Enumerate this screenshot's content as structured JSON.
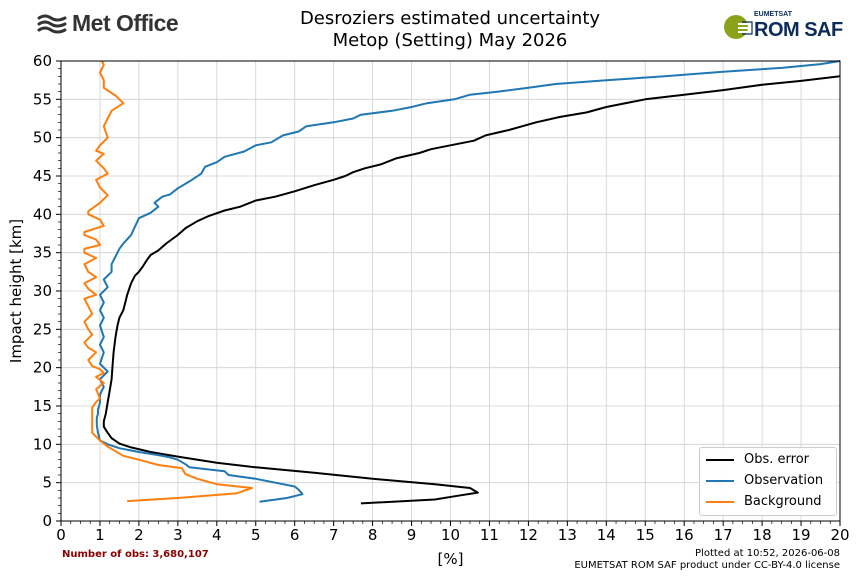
{
  "header": {
    "title_line1": "Desroziers estimated uncertainty",
    "title_line2": "Metop (Setting) May 2026",
    "left_logo_text": "Met Office",
    "right_logo_small": "EUMETSAT",
    "right_logo_big": "ROM SAF"
  },
  "footer": {
    "nobs": "Number of obs: 3,680,107",
    "plotted": "Plotted at 10:52, 2026-06-08",
    "license": "EUMETSAT ROM SAF product under CC-BY-4.0 license"
  },
  "colors": {
    "obs_error": "#000000",
    "observation": "#1f77b4",
    "background": "#ff7f0e",
    "metoffice_text": "#333333",
    "romsaf_text": "#0c2c5c",
    "romsaf_green": "#8aa21a",
    "nobs_text": "#8b0000"
  },
  "chart_data": {
    "type": "line",
    "xlabel": "[%]",
    "ylabel": "Impact height [km]",
    "xlim": [
      0,
      20
    ],
    "ylim": [
      0,
      60
    ],
    "xticks": [
      "0",
      "1",
      "2",
      "3",
      "4",
      "5",
      "6",
      "7",
      "8",
      "9",
      "10",
      "11",
      "12",
      "13",
      "14",
      "15",
      "16",
      "17",
      "18",
      "19",
      "20"
    ],
    "yticks": [
      "0",
      "5",
      "10",
      "15",
      "20",
      "25",
      "30",
      "35",
      "40",
      "45",
      "50",
      "55",
      "60"
    ],
    "grid": true,
    "legend_position": "lower-right",
    "series": [
      {
        "name": "Obs. error",
        "color": "#000000",
        "points": [
          [
            7.7,
            2.3
          ],
          [
            9.6,
            2.8
          ],
          [
            10.2,
            3.3
          ],
          [
            10.7,
            3.7
          ],
          [
            10.5,
            4.3
          ],
          [
            9.6,
            4.8
          ],
          [
            8.0,
            5.5
          ],
          [
            6.5,
            6.3
          ],
          [
            5.0,
            7.0
          ],
          [
            4.0,
            7.6
          ],
          [
            3.0,
            8.4
          ],
          [
            2.3,
            9.0
          ],
          [
            1.8,
            9.6
          ],
          [
            1.5,
            10.1
          ],
          [
            1.3,
            10.8
          ],
          [
            1.2,
            11.5
          ],
          [
            1.1,
            12.3
          ],
          [
            1.1,
            13.0
          ],
          [
            1.15,
            14.0
          ],
          [
            1.2,
            15.5
          ],
          [
            1.25,
            17.0
          ],
          [
            1.3,
            18.5
          ],
          [
            1.32,
            20.0
          ],
          [
            1.35,
            22.0
          ],
          [
            1.4,
            24.0
          ],
          [
            1.45,
            25.5
          ],
          [
            1.5,
            26.5
          ],
          [
            1.6,
            27.5
          ],
          [
            1.65,
            28.5
          ],
          [
            1.7,
            29.5
          ],
          [
            1.8,
            31.0
          ],
          [
            1.9,
            32.0
          ],
          [
            2.0,
            32.5
          ],
          [
            2.1,
            33.2
          ],
          [
            2.2,
            34.0
          ],
          [
            2.3,
            34.7
          ],
          [
            2.5,
            35.3
          ],
          [
            2.7,
            36.2
          ],
          [
            3.0,
            37.3
          ],
          [
            3.2,
            38.2
          ],
          [
            3.5,
            39.1
          ],
          [
            3.8,
            39.8
          ],
          [
            4.2,
            40.5
          ],
          [
            4.6,
            41.0
          ],
          [
            5.0,
            41.8
          ],
          [
            5.5,
            42.3
          ],
          [
            6.0,
            43.0
          ],
          [
            6.5,
            43.8
          ],
          [
            7.0,
            44.5
          ],
          [
            7.3,
            45.0
          ],
          [
            7.5,
            45.5
          ],
          [
            7.8,
            46.0
          ],
          [
            8.2,
            46.5
          ],
          [
            8.6,
            47.3
          ],
          [
            9.2,
            48.0
          ],
          [
            9.5,
            48.5
          ],
          [
            10.0,
            49.0
          ],
          [
            10.6,
            49.6
          ],
          [
            10.9,
            50.3
          ],
          [
            11.5,
            51.0
          ],
          [
            12.2,
            52.0
          ],
          [
            12.8,
            52.7
          ],
          [
            13.5,
            53.3
          ],
          [
            14.0,
            54.0
          ],
          [
            14.6,
            54.6
          ],
          [
            15.0,
            55.0
          ],
          [
            16.0,
            55.6
          ],
          [
            17.0,
            56.2
          ],
          [
            18.0,
            56.9
          ],
          [
            19.0,
            57.4
          ],
          [
            20.0,
            58.0
          ]
        ]
      },
      {
        "name": "Observation",
        "color": "#1f77b4",
        "points": [
          [
            5.1,
            2.5
          ],
          [
            5.8,
            3.0
          ],
          [
            6.2,
            3.5
          ],
          [
            6.1,
            4.1
          ],
          [
            6.0,
            4.5
          ],
          [
            5.0,
            5.5
          ],
          [
            4.3,
            6.0
          ],
          [
            4.2,
            6.5
          ],
          [
            3.3,
            7.0
          ],
          [
            3.2,
            7.4
          ],
          [
            3.0,
            8.0
          ],
          [
            2.8,
            8.3
          ],
          [
            2.5,
            8.6
          ],
          [
            2.0,
            9.0
          ],
          [
            1.5,
            9.5
          ],
          [
            1.2,
            10.0
          ],
          [
            1.0,
            10.5
          ],
          [
            0.95,
            11.5
          ],
          [
            0.92,
            12.5
          ],
          [
            0.92,
            13.5
          ],
          [
            0.95,
            14.0
          ],
          [
            0.95,
            14.5
          ],
          [
            1.0,
            15.5
          ],
          [
            1.0,
            16.5
          ],
          [
            1.1,
            17.5
          ],
          [
            1.0,
            18.5
          ],
          [
            1.2,
            19.5
          ],
          [
            1.0,
            20.5
          ],
          [
            1.1,
            22.0
          ],
          [
            1.0,
            23.0
          ],
          [
            1.1,
            24.0
          ],
          [
            1.0,
            25.5
          ],
          [
            1.1,
            26.5
          ],
          [
            1.0,
            27.5
          ],
          [
            1.1,
            28.5
          ],
          [
            1.0,
            29.5
          ],
          [
            1.2,
            30.5
          ],
          [
            1.1,
            31.5
          ],
          [
            1.3,
            32.5
          ],
          [
            1.3,
            33.5
          ],
          [
            1.4,
            34.5
          ],
          [
            1.5,
            35.5
          ],
          [
            1.6,
            36.2
          ],
          [
            1.8,
            37.3
          ],
          [
            1.9,
            38.4
          ],
          [
            2.0,
            39.5
          ],
          [
            2.3,
            40.2
          ],
          [
            2.5,
            41.0
          ],
          [
            2.4,
            41.5
          ],
          [
            2.6,
            42.3
          ],
          [
            2.8,
            42.6
          ],
          [
            3.0,
            43.4
          ],
          [
            3.3,
            44.3
          ],
          [
            3.6,
            45.3
          ],
          [
            3.7,
            46.2
          ],
          [
            4.0,
            46.8
          ],
          [
            4.2,
            47.5
          ],
          [
            4.7,
            48.2
          ],
          [
            5.0,
            49.0
          ],
          [
            5.4,
            49.4
          ],
          [
            5.7,
            50.3
          ],
          [
            6.1,
            50.8
          ],
          [
            6.3,
            51.5
          ],
          [
            7.0,
            52.0
          ],
          [
            7.5,
            52.5
          ],
          [
            7.7,
            53.0
          ],
          [
            8.5,
            53.5
          ],
          [
            9.0,
            54.0
          ],
          [
            9.4,
            54.5
          ],
          [
            10.1,
            55.0
          ],
          [
            10.5,
            55.6
          ],
          [
            11.2,
            56.0
          ],
          [
            12.0,
            56.5
          ],
          [
            12.7,
            57.0
          ],
          [
            14.0,
            57.5
          ],
          [
            15.5,
            58.0
          ],
          [
            17.0,
            58.6
          ],
          [
            18.5,
            59.1
          ],
          [
            19.5,
            59.6
          ],
          [
            20.0,
            60.0
          ]
        ]
      },
      {
        "name": "Background",
        "color": "#ff7f0e",
        "points": [
          [
            1.7,
            2.6
          ],
          [
            3.0,
            3.0
          ],
          [
            4.5,
            3.6
          ],
          [
            4.9,
            4.3
          ],
          [
            4.0,
            4.8
          ],
          [
            3.5,
            5.5
          ],
          [
            3.2,
            6.1
          ],
          [
            3.1,
            6.9
          ],
          [
            2.5,
            7.3
          ],
          [
            2.0,
            8.0
          ],
          [
            1.6,
            8.5
          ],
          [
            1.2,
            9.7
          ],
          [
            1.0,
            10.5
          ],
          [
            0.8,
            11.5
          ],
          [
            0.8,
            12.5
          ],
          [
            0.8,
            13.8
          ],
          [
            0.8,
            14.8
          ],
          [
            0.9,
            15.5
          ],
          [
            1.0,
            16.0
          ],
          [
            0.9,
            17.2
          ],
          [
            1.1,
            18.0
          ],
          [
            0.9,
            18.8
          ],
          [
            1.1,
            19.3
          ],
          [
            1.0,
            19.8
          ],
          [
            0.8,
            20.2
          ],
          [
            0.7,
            21.0
          ],
          [
            0.9,
            22.0
          ],
          [
            0.7,
            22.6
          ],
          [
            0.6,
            23.3
          ],
          [
            0.8,
            24.3
          ],
          [
            0.7,
            25.0
          ],
          [
            0.6,
            26.0
          ],
          [
            0.8,
            27.0
          ],
          [
            0.7,
            28.0
          ],
          [
            0.6,
            29.0
          ],
          [
            0.9,
            29.5
          ],
          [
            0.7,
            30.3
          ],
          [
            0.6,
            31.0
          ],
          [
            0.9,
            31.8
          ],
          [
            0.7,
            32.5
          ],
          [
            0.6,
            33.5
          ],
          [
            0.9,
            34.3
          ],
          [
            0.6,
            35.0
          ],
          [
            0.6,
            35.5
          ],
          [
            1.0,
            36.0
          ],
          [
            0.9,
            36.7
          ],
          [
            0.6,
            37.3
          ],
          [
            0.6,
            37.7
          ],
          [
            1.1,
            38.5
          ],
          [
            1.0,
            39.3
          ],
          [
            0.7,
            40.0
          ],
          [
            0.7,
            40.4
          ],
          [
            1.0,
            41.5
          ],
          [
            1.2,
            42.5
          ],
          [
            1.0,
            43.5
          ],
          [
            0.9,
            44.5
          ],
          [
            1.2,
            45.3
          ],
          [
            1.1,
            46.0
          ],
          [
            0.9,
            47.0
          ],
          [
            1.1,
            47.9
          ],
          [
            0.9,
            48.3
          ],
          [
            1.0,
            49.0
          ],
          [
            1.2,
            50.0
          ],
          [
            1.1,
            51.5
          ],
          [
            1.2,
            52.5
          ],
          [
            1.3,
            53.5
          ],
          [
            1.6,
            54.5
          ],
          [
            1.4,
            55.5
          ],
          [
            1.1,
            56.5
          ],
          [
            1.1,
            57.5
          ],
          [
            1.0,
            58.5
          ],
          [
            1.1,
            59.5
          ],
          [
            1.05,
            60.0
          ]
        ]
      }
    ]
  }
}
